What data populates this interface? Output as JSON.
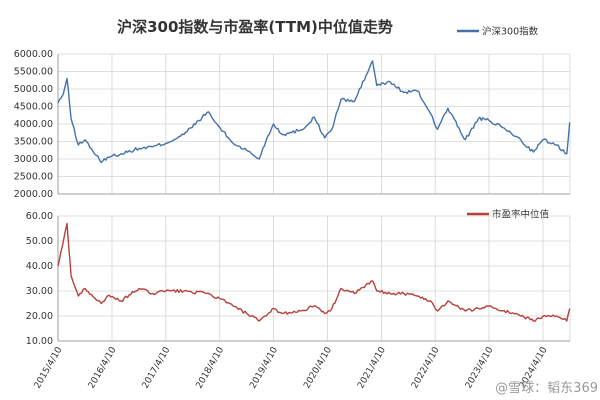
{
  "chart_data": [
    {
      "type": "line",
      "title": "沪深300指数与市盈率(TTM)中位值走势",
      "ylim": [
        2000,
        6000
      ],
      "yticks": [
        "2000.00",
        "2500.00",
        "3000.00",
        "3500.00",
        "4000.00",
        "4500.00",
        "5000.00",
        "5500.00",
        "6000.00"
      ],
      "grid": true,
      "legend_position": "top-right",
      "series": [
        {
          "name": "沪深300指数",
          "color": "#4472a8",
          "x": [
            "2015-04-10",
            "2015-05-15",
            "2015-06-10",
            "2015-07-08",
            "2015-08-26",
            "2015-10-10",
            "2016-01-28",
            "2016-03-10",
            "2016-06-10",
            "2016-10-10",
            "2017-01-10",
            "2017-04-10",
            "2017-08-10",
            "2017-11-20",
            "2018-01-24",
            "2018-03-10",
            "2018-07-10",
            "2018-10-10",
            "2019-01-03",
            "2019-02-20",
            "2019-04-10",
            "2019-06-10",
            "2019-08-10",
            "2019-11-10",
            "2020-01-10",
            "2020-03-23",
            "2020-05-10",
            "2020-07-10",
            "2020-10-10",
            "2021-02-10",
            "2021-03-10",
            "2021-06-10",
            "2021-09-10",
            "2021-12-10",
            "2022-03-10",
            "2022-04-26",
            "2022-07-05",
            "2022-10-31",
            "2023-01-28",
            "2023-04-10",
            "2023-07-10",
            "2023-10-10",
            "2024-02-05",
            "2024-04-10",
            "2024-07-10",
            "2024-09-18",
            "2024-10-08"
          ],
          "values": [
            4600,
            4850,
            5300,
            4150,
            3400,
            3550,
            2900,
            3050,
            3150,
            3300,
            3350,
            3450,
            3700,
            4100,
            4350,
            4050,
            3450,
            3250,
            3000,
            3550,
            4000,
            3700,
            3750,
            3900,
            4200,
            3600,
            3850,
            4700,
            4650,
            5800,
            5100,
            5200,
            4900,
            4950,
            4300,
            3850,
            4450,
            3550,
            4150,
            4100,
            3900,
            3650,
            3200,
            3550,
            3400,
            3150,
            4050
          ]
        }
      ]
    },
    {
      "type": "line",
      "ylim": [
        10,
        60
      ],
      "yticks": [
        "10.00",
        "20.00",
        "30.00",
        "40.00",
        "50.00",
        "60.00"
      ],
      "grid": true,
      "legend_position": "top-right",
      "x_tick_labels": [
        "2015/4/10",
        "2016/4/10",
        "2017/4/10",
        "2018/4/10",
        "2019/4/10",
        "2020/4/10",
        "2021/4/10",
        "2022/4/10",
        "2023/4/10",
        "2024/4/10"
      ],
      "series": [
        {
          "name": "市盈率中位值",
          "color": "#b7403a",
          "x": [
            "2015-04-10",
            "2015-05-10",
            "2015-06-10",
            "2015-07-08",
            "2015-08-26",
            "2015-10-10",
            "2016-01-28",
            "2016-03-10",
            "2016-06-10",
            "2016-10-10",
            "2017-01-10",
            "2017-04-10",
            "2017-08-10",
            "2018-01-10",
            "2018-04-10",
            "2018-07-10",
            "2018-10-10",
            "2019-01-03",
            "2019-02-20",
            "2019-04-10",
            "2019-06-10",
            "2019-10-10",
            "2020-01-10",
            "2020-03-23",
            "2020-05-10",
            "2020-07-10",
            "2020-10-10",
            "2021-02-10",
            "2021-03-10",
            "2021-06-10",
            "2021-09-10",
            "2021-12-10",
            "2022-03-10",
            "2022-04-26",
            "2022-07-05",
            "2022-10-31",
            "2023-01-28",
            "2023-04-10",
            "2023-07-10",
            "2023-10-10",
            "2024-02-05",
            "2024-04-10",
            "2024-07-10",
            "2024-09-18",
            "2024-10-08"
          ],
          "values": [
            40,
            48,
            57,
            36,
            28,
            31,
            25,
            28,
            26,
            31,
            29,
            30,
            30,
            29,
            27,
            24,
            21,
            18,
            20,
            23,
            21,
            22,
            24,
            21,
            23,
            31,
            29,
            34,
            30,
            29,
            29,
            28,
            26,
            22,
            26,
            22,
            23,
            24,
            22,
            21,
            18,
            20,
            20,
            18,
            23
          ]
        }
      ]
    }
  ],
  "watermark": "@雪球：韬东369"
}
